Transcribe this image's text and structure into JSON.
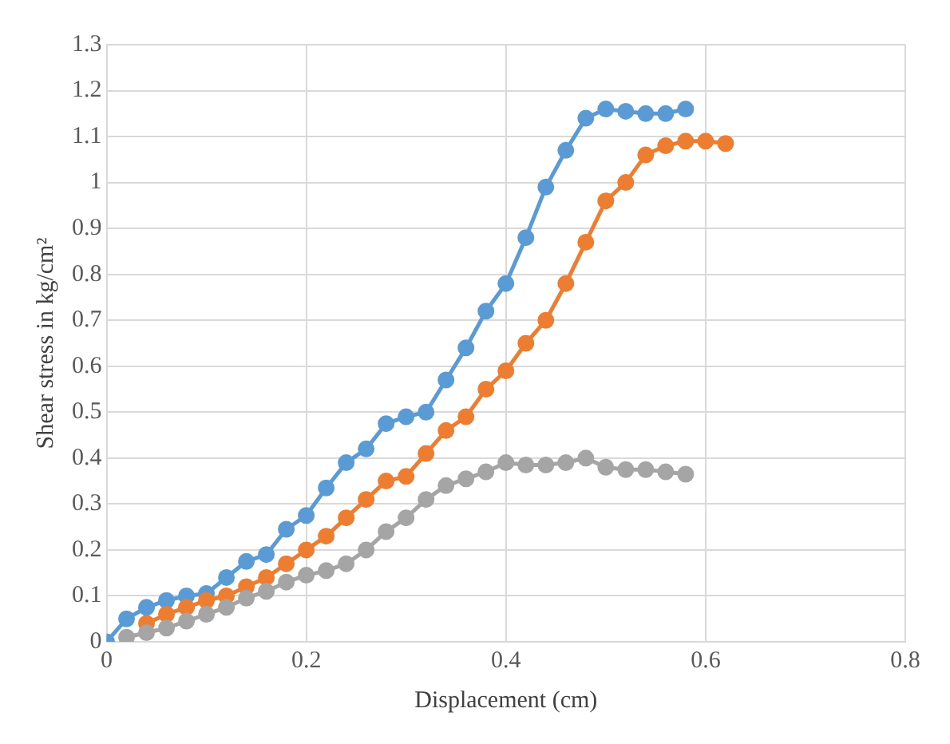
{
  "chart_data": {
    "type": "line",
    "xlabel": "Displacement (cm)",
    "ylabel": "Shear stress in kg/cm²",
    "xlim": [
      0,
      0.8
    ],
    "xticks": [
      0,
      0.2,
      0.4,
      0.6,
      0.8
    ],
    "ylim": [
      0,
      1.3
    ],
    "yticks": [
      0,
      0.1,
      0.2,
      0.3,
      0.4,
      0.5,
      0.6,
      0.7,
      0.8,
      0.9,
      1,
      1.1,
      1.2,
      1.3
    ],
    "grid": true,
    "legend": false,
    "marker": "circle",
    "line_style": "solid",
    "series": [
      {
        "color": "#5b9bd5",
        "x": [
          0,
          0.02,
          0.04,
          0.06,
          0.08,
          0.1,
          0.12,
          0.14,
          0.16,
          0.18,
          0.2,
          0.22,
          0.24,
          0.26,
          0.28,
          0.3,
          0.32,
          0.34,
          0.36,
          0.38,
          0.4,
          0.42,
          0.44,
          0.46,
          0.48,
          0.5,
          0.52,
          0.54,
          0.56,
          0.58
        ],
        "values": [
          0,
          0.05,
          0.075,
          0.09,
          0.1,
          0.105,
          0.14,
          0.175,
          0.19,
          0.245,
          0.275,
          0.335,
          0.39,
          0.42,
          0.475,
          0.49,
          0.5,
          0.57,
          0.64,
          0.72,
          0.78,
          0.88,
          0.99,
          1.07,
          1.14,
          1.16,
          1.155,
          1.15,
          1.15,
          1.16
        ]
      },
      {
        "color": "#ed7d31",
        "x": [
          0.04,
          0.06,
          0.08,
          0.1,
          0.12,
          0.14,
          0.16,
          0.18,
          0.2,
          0.22,
          0.24,
          0.26,
          0.28,
          0.3,
          0.32,
          0.34,
          0.36,
          0.38,
          0.4,
          0.42,
          0.44,
          0.46,
          0.48,
          0.5,
          0.52,
          0.54,
          0.56,
          0.58,
          0.6,
          0.62
        ],
        "values": [
          0.04,
          0.06,
          0.075,
          0.09,
          0.1,
          0.12,
          0.14,
          0.17,
          0.2,
          0.23,
          0.27,
          0.31,
          0.35,
          0.36,
          0.41,
          0.46,
          0.49,
          0.55,
          0.59,
          0.65,
          0.7,
          0.78,
          0.87,
          0.96,
          1.0,
          1.06,
          1.08,
          1.09,
          1.09,
          1.085
        ]
      },
      {
        "color": "#a5a5a5",
        "x": [
          0.02,
          0.04,
          0.06,
          0.08,
          0.1,
          0.12,
          0.14,
          0.16,
          0.18,
          0.2,
          0.22,
          0.24,
          0.26,
          0.28,
          0.3,
          0.32,
          0.34,
          0.36,
          0.38,
          0.4,
          0.42,
          0.44,
          0.46,
          0.48,
          0.5,
          0.52,
          0.54,
          0.56,
          0.58
        ],
        "values": [
          0.01,
          0.02,
          0.03,
          0.045,
          0.06,
          0.075,
          0.095,
          0.11,
          0.13,
          0.145,
          0.155,
          0.17,
          0.2,
          0.24,
          0.27,
          0.31,
          0.34,
          0.355,
          0.37,
          0.39,
          0.385,
          0.385,
          0.39,
          0.4,
          0.38,
          0.375,
          0.375,
          0.37,
          0.365
        ]
      }
    ]
  }
}
